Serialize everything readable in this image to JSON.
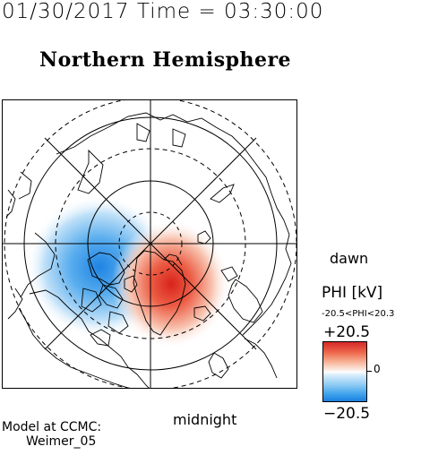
{
  "header": {
    "datetime": "01/30/2017 Time = 03:30:00",
    "title": "Northern Hemisphere"
  },
  "map": {
    "dawn_label": "dawn",
    "midnight_label": "midnight",
    "pole_view": "north-polar",
    "potential_cells": [
      {
        "sign": "negative",
        "color": "#2b8fe6",
        "location": "dusk side (left of pole)"
      },
      {
        "sign": "positive",
        "color": "#d92b20",
        "location": "dawn-midnight side (right of pole, over Greenland)"
      }
    ]
  },
  "colorbar": {
    "label": "PHI [kV]",
    "range_text": "-20.5<PHI<20.3",
    "max_label": "+20.5",
    "mid_label": "0",
    "min_label": "−20.5",
    "colors": {
      "max": "#d62728",
      "mid": "#ffffff",
      "min": "#1a7fe0"
    }
  },
  "footer": {
    "line1": "Model at CCMC:",
    "line2": "Weimer_05"
  }
}
